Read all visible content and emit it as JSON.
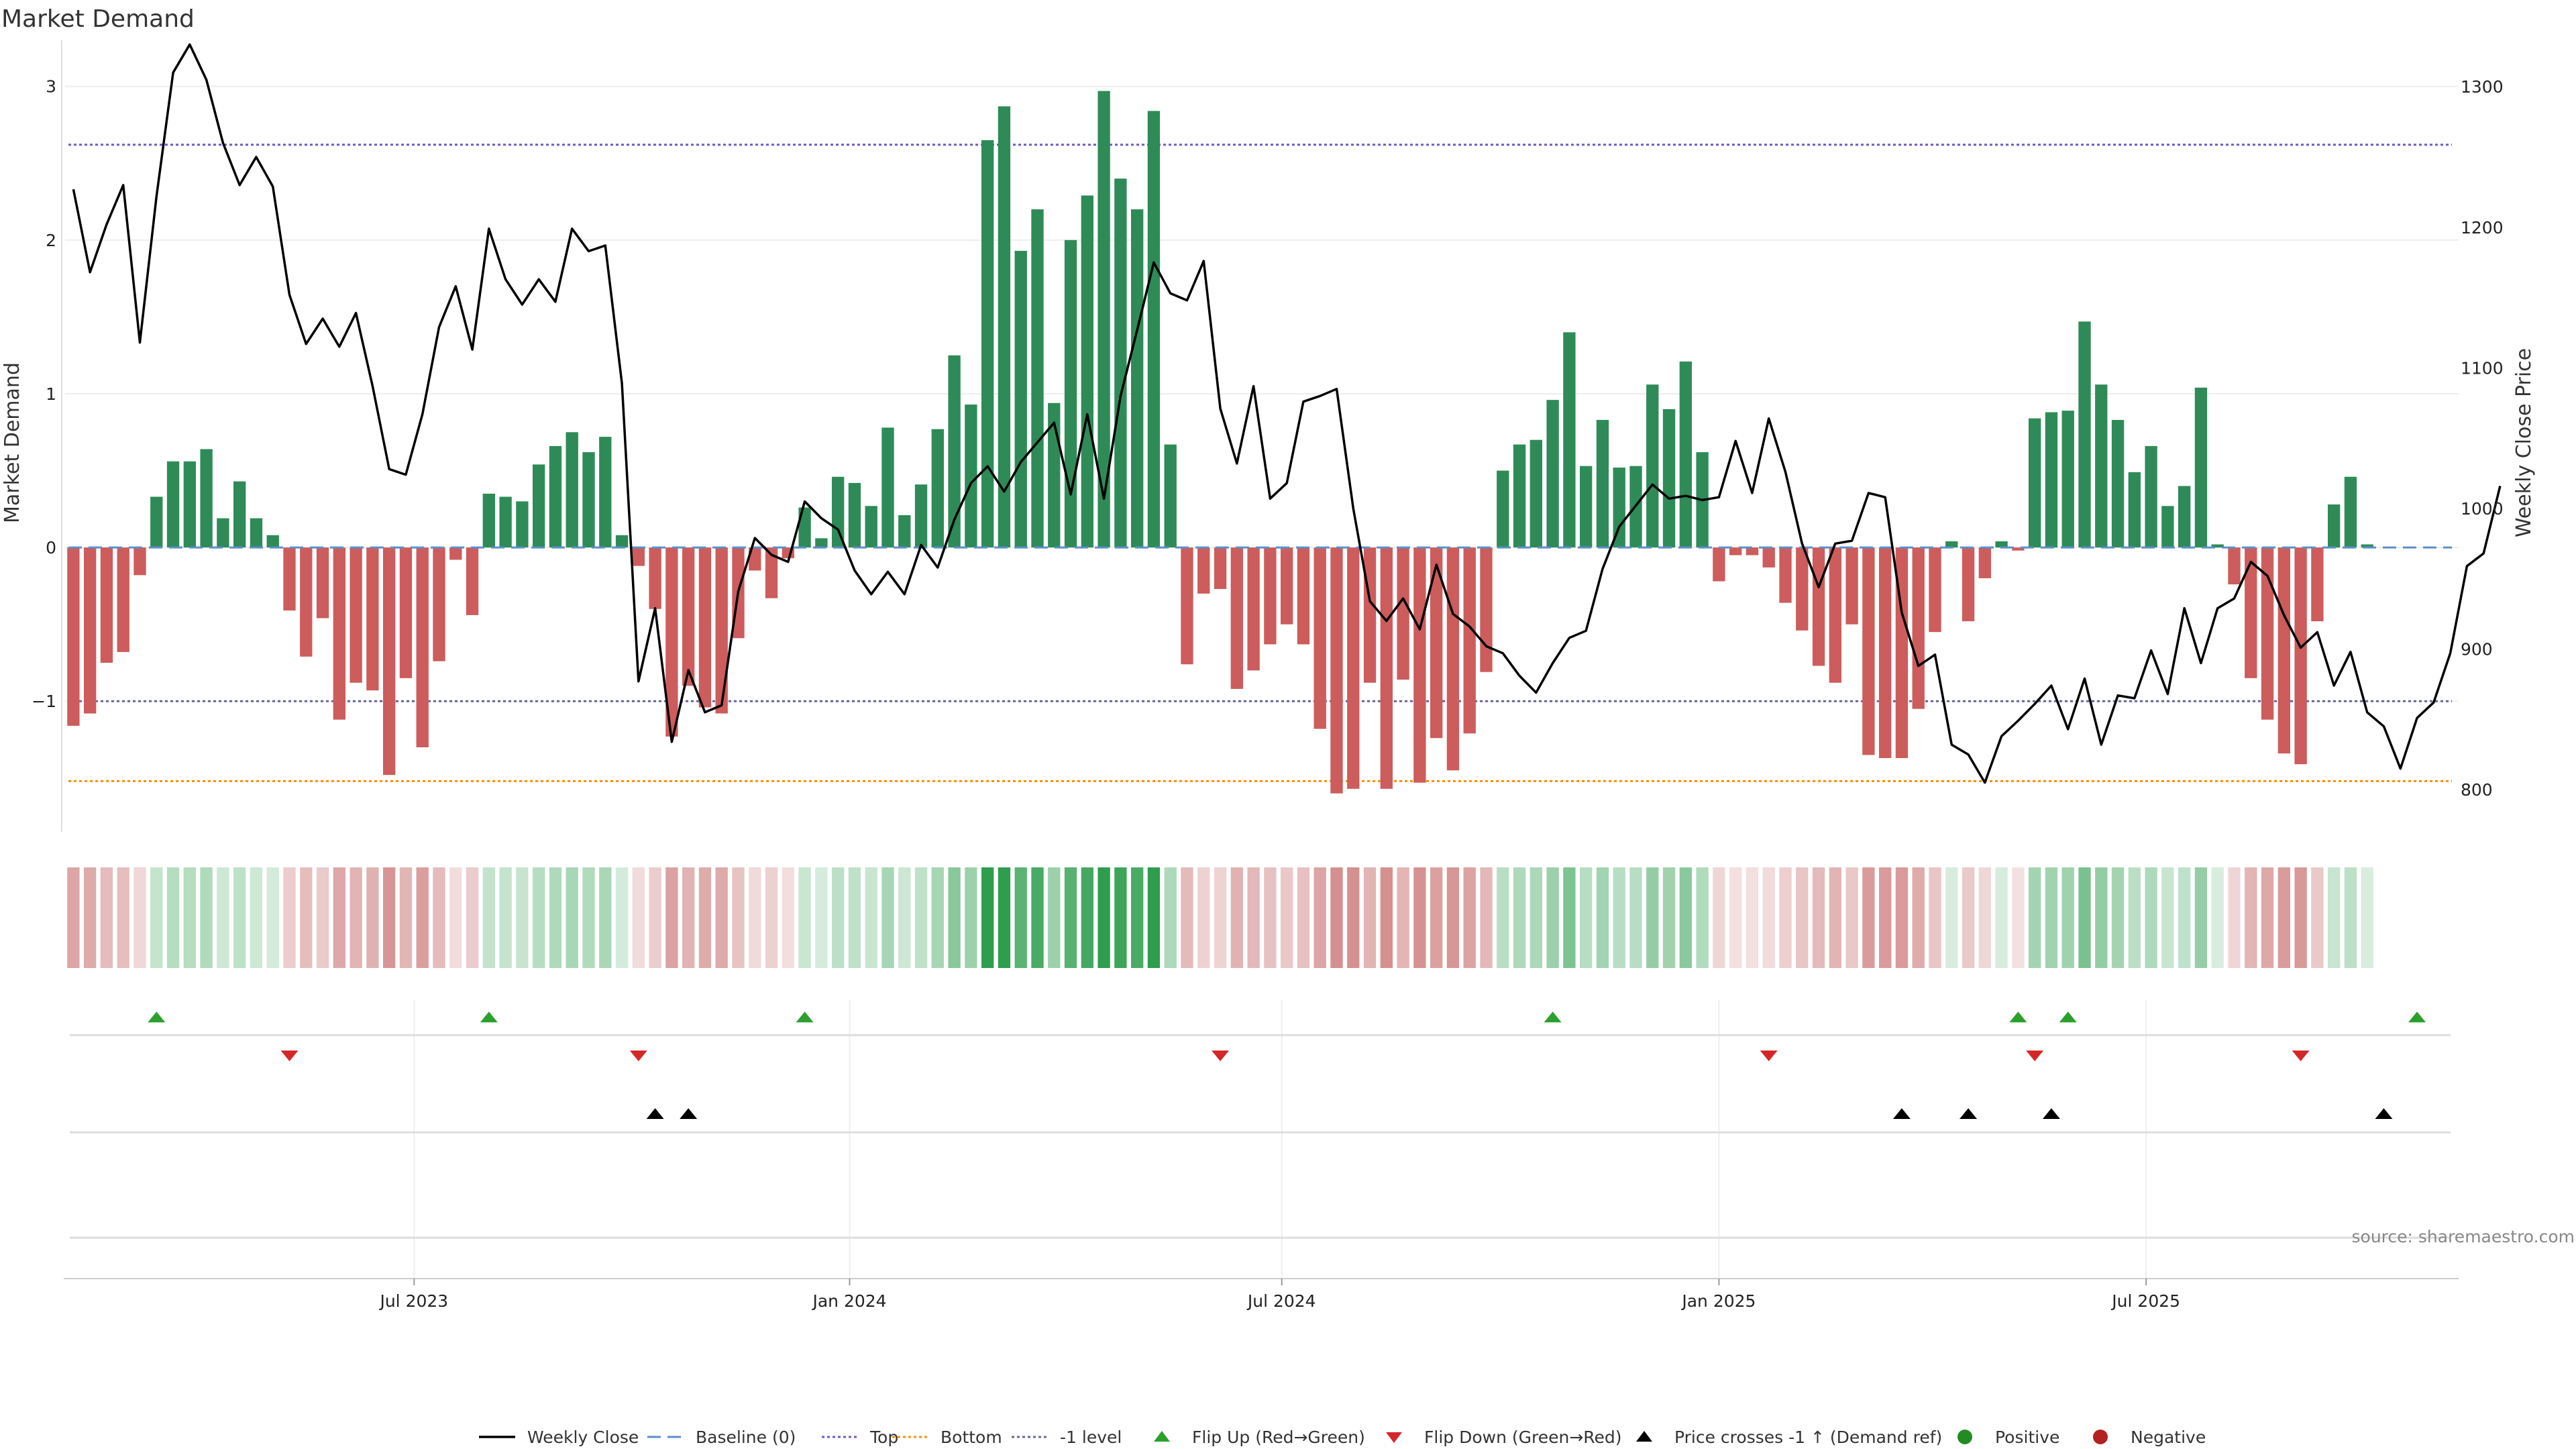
{
  "title": "Market Demand",
  "source_note": "source: sharemaestro.com",
  "colors": {
    "positive_bar": "#2e8b57",
    "negative_bar": "#cd5c5c",
    "price_line": "#000000",
    "top_line": "#6a5acd",
    "bottom_line": "#ff8c00",
    "minus_one_line": "#666699",
    "flip_up": "#2ca02c",
    "flip_down": "#d62728",
    "cross_marker": "#000000"
  },
  "chart_data": {
    "type": "bar",
    "x_start_date": "2023-03-03",
    "weeks": 144,
    "left_axis": {
      "label": "Market Demand",
      "ylim": [
        -1.85,
        3.3
      ],
      "ticks": [
        3,
        2,
        1,
        0,
        -1
      ],
      "tick_labels": [
        "3",
        "2",
        "1",
        "0",
        "−1"
      ]
    },
    "right_axis": {
      "label": "Weekly Close Price",
      "ylim": [
        770,
        1333
      ],
      "ticks": [
        1300,
        1200,
        1100,
        1000,
        900,
        800
      ],
      "tick_labels": [
        "1300",
        "1200",
        "1100",
        "1000",
        "900",
        "800"
      ]
    },
    "x_ticks": [
      {
        "label": "Jul 2023",
        "week": 20.5
      },
      {
        "label": "Jan 2024",
        "week": 46.7
      },
      {
        "label": "Jul 2024",
        "week": 72.7
      },
      {
        "label": "Jan 2025",
        "week": 99.0
      },
      {
        "label": "Jul 2025",
        "week": 124.7
      }
    ],
    "reference_lines": {
      "top": 2.62,
      "bottom": -1.52,
      "minus_one": -1.0,
      "baseline": 0
    },
    "demand": [
      -1.16,
      -1.08,
      -0.75,
      -0.68,
      -0.18,
      0.33,
      0.56,
      0.56,
      0.64,
      0.19,
      0.43,
      0.19,
      0.08,
      -0.41,
      -0.71,
      -0.46,
      -1.12,
      -0.88,
      -0.93,
      -1.48,
      -0.85,
      -1.3,
      -0.74,
      -0.08,
      -0.44,
      0.35,
      0.33,
      0.3,
      0.54,
      0.66,
      0.75,
      0.62,
      0.72,
      0.08,
      -0.12,
      -0.4,
      -1.23,
      -0.9,
      -1.04,
      -1.08,
      -0.59,
      -0.15,
      -0.33,
      -0.07,
      0.26,
      0.06,
      0.46,
      0.42,
      0.27,
      0.78,
      0.21,
      0.41,
      0.77,
      1.25,
      0.93,
      2.65,
      2.87,
      1.93,
      2.2,
      0.94,
      2.0,
      2.29,
      2.97,
      2.4,
      2.2,
      2.84,
      0.67,
      -0.76,
      -0.3,
      -0.27,
      -0.92,
      -0.8,
      -0.63,
      -0.5,
      -0.63,
      -1.18,
      -1.6,
      -1.57,
      -0.88,
      -1.57,
      -0.86,
      -1.53,
      -1.24,
      -1.45,
      -1.21,
      -0.81,
      0.5,
      0.67,
      0.7,
      0.96,
      1.4,
      0.53,
      0.83,
      0.52,
      0.53,
      1.06,
      0.9,
      1.21,
      0.62,
      -0.22,
      -0.05,
      -0.05,
      -0.13,
      -0.36,
      -0.54,
      -0.77,
      -0.88,
      -0.5,
      -1.35,
      -1.37,
      -1.37,
      -1.05,
      -0.55,
      0.04,
      -0.48,
      -0.2,
      0.04,
      -0.02,
      0.84,
      0.88,
      0.89,
      1.47,
      1.06,
      0.83,
      0.49,
      0.66,
      0.27,
      0.4,
      1.04,
      0.02,
      -0.24,
      -0.85,
      -1.12,
      -1.34,
      -1.41,
      -0.48,
      0.28,
      0.46,
      0.02
    ],
    "close": [
      1227,
      1168,
      1202,
      1230,
      1118,
      1222,
      1310,
      1330,
      1305,
      1260,
      1230,
      1250,
      1229,
      1152,
      1117,
      1135,
      1115,
      1139,
      1087,
      1028,
      1024,
      1067,
      1129,
      1158,
      1113,
      1199,
      1163,
      1145,
      1163,
      1147,
      1199,
      1183,
      1187,
      1089,
      877,
      929,
      834,
      885,
      855,
      860,
      941,
      979,
      967,
      962,
      1005,
      993,
      985,
      956,
      939,
      955,
      939,
      974,
      958,
      992,
      1018,
      1030,
      1012,
      1033,
      1047,
      1061,
      1010,
      1067,
      1007,
      1080,
      1127,
      1175,
      1153,
      1148,
      1176,
      1071,
      1032,
      1087,
      1007,
      1018,
      1076,
      1080,
      1085,
      1000,
      934,
      920,
      936,
      914,
      960,
      925,
      916,
      902,
      897,
      881,
      869,
      890,
      908,
      913,
      957,
      987,
      1002,
      1017,
      1007,
      1009,
      1006,
      1008,
      1048,
      1011,
      1064,
      1026,
      975,
      944,
      975,
      977,
      1011,
      1008,
      926,
      888,
      896,
      832,
      825,
      805,
      838,
      849,
      861,
      874,
      843,
      879,
      832,
      867,
      865,
      899,
      868,
      929,
      890,
      929,
      936,
      962,
      952,
      924,
      901,
      912,
      874,
      898,
      855,
      845,
      815,
      851,
      862,
      897,
      959,
      968,
      1016
    ]
  },
  "flags": {
    "flip_up": [
      5,
      25,
      44,
      89,
      117,
      120,
      141
    ],
    "flip_down": [
      13,
      34,
      69,
      102,
      118,
      134
    ],
    "price_crosses": [
      35,
      37,
      110,
      114,
      119,
      139
    ]
  },
  "legend": [
    {
      "key": "weekly_close",
      "label": "Weekly Close"
    },
    {
      "key": "baseline",
      "label": "Baseline (0)"
    },
    {
      "key": "top",
      "label": "Top"
    },
    {
      "key": "bottom",
      "label": "Bottom"
    },
    {
      "key": "minus_one",
      "label": "-1 level"
    },
    {
      "key": "flip_up",
      "label": "Flip Up (Red→Green)"
    },
    {
      "key": "flip_down",
      "label": "Flip Down (Green→Red)"
    },
    {
      "key": "price_cross",
      "label": "Price crosses -1 ↑ (Demand ref)"
    },
    {
      "key": "positive",
      "label": "Positive"
    },
    {
      "key": "negative",
      "label": "Negative"
    }
  ]
}
